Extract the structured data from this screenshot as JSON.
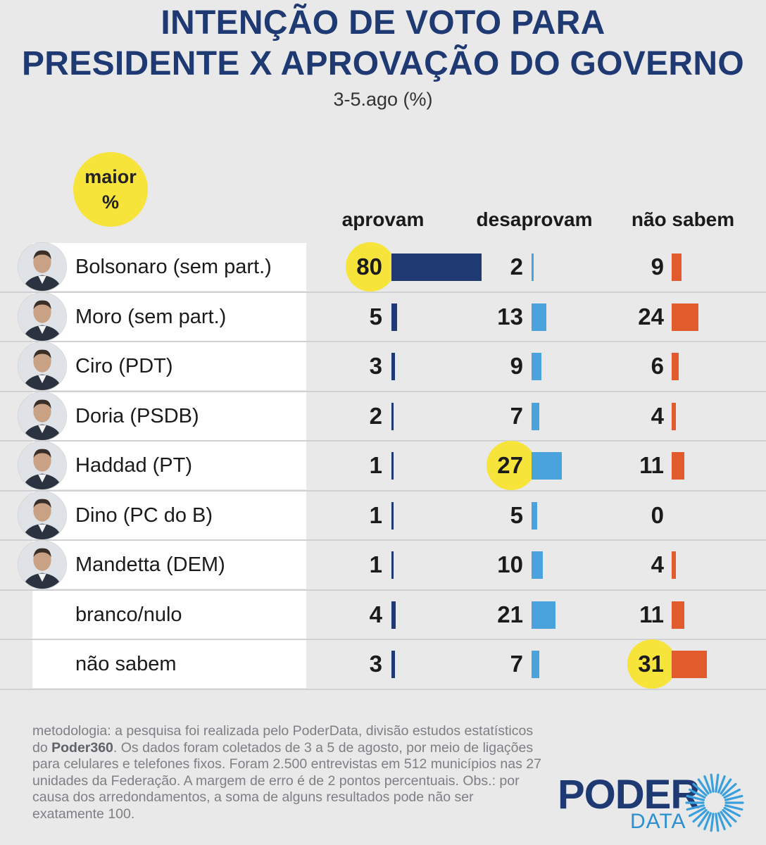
{
  "header": {
    "title_line1": "INTENÇÃO DE VOTO PARA",
    "title_line2": "PRESIDENTE X APROVAÇÃO DO GOVERNO",
    "subtitle": "3-5.ago (%)"
  },
  "badge": {
    "line1": "maior",
    "line2": "%"
  },
  "colors": {
    "aprovam": "#1f3a73",
    "desaprovam": "#4aa3dc",
    "nao_sabem": "#e25b2c",
    "highlight": "#f7e43a"
  },
  "chart_data": {
    "type": "table",
    "title": "INTENÇÃO DE VOTO PARA PRESIDENTE X APROVAÇÃO DO GOVERNO",
    "subtitle": "3-5.ago (%)",
    "columns": [
      "aprovam",
      "desaprovam",
      "não sabem"
    ],
    "rows": [
      {
        "label": "Bolsonaro (sem part.)",
        "aprovam": 80,
        "desaprovam": 2,
        "nao_sabem": 9,
        "photo": true,
        "highlight": "aprovam"
      },
      {
        "label": "Moro (sem part.)",
        "aprovam": 5,
        "desaprovam": 13,
        "nao_sabem": 24,
        "photo": true,
        "highlight": ""
      },
      {
        "label": "Ciro (PDT)",
        "aprovam": 3,
        "desaprovam": 9,
        "nao_sabem": 6,
        "photo": true,
        "highlight": ""
      },
      {
        "label": "Doria (PSDB)",
        "aprovam": 2,
        "desaprovam": 7,
        "nao_sabem": 4,
        "photo": true,
        "highlight": ""
      },
      {
        "label": "Haddad (PT)",
        "aprovam": 1,
        "desaprovam": 27,
        "nao_sabem": 11,
        "photo": true,
        "highlight": "desaprovam"
      },
      {
        "label": "Dino (PC do B)",
        "aprovam": 1,
        "desaprovam": 5,
        "nao_sabem": 0,
        "photo": true,
        "highlight": ""
      },
      {
        "label": "Mandetta (DEM)",
        "aprovam": 1,
        "desaprovam": 10,
        "nao_sabem": 4,
        "photo": true,
        "highlight": ""
      },
      {
        "label": "branco/nulo",
        "aprovam": 4,
        "desaprovam": 21,
        "nao_sabem": 11,
        "photo": false,
        "highlight": ""
      },
      {
        "label": "não sabem",
        "aprovam": 3,
        "desaprovam": 7,
        "nao_sabem": 31,
        "photo": false,
        "highlight": "nao_sabem"
      }
    ]
  },
  "footer": {
    "methodology_part1": "metodologia: a pesquisa foi realizada pelo PoderData, divisão estudos estatísticos do ",
    "methodology_bold": "Poder360",
    "methodology_part2": ". Os dados foram coletados de 3 a 5 de agosto, por meio de ligações para celulares e telefones fixos. Foram 2.500 entrevistas em 512 municípios nas 27 unidades da Federação. A margem de erro é de 2 pontos percentuais. Obs.: por causa dos arredondamentos, a soma de alguns resultados pode não ser exatamente 100.",
    "logo_word1": "PODER",
    "logo_word2": "DATA"
  }
}
